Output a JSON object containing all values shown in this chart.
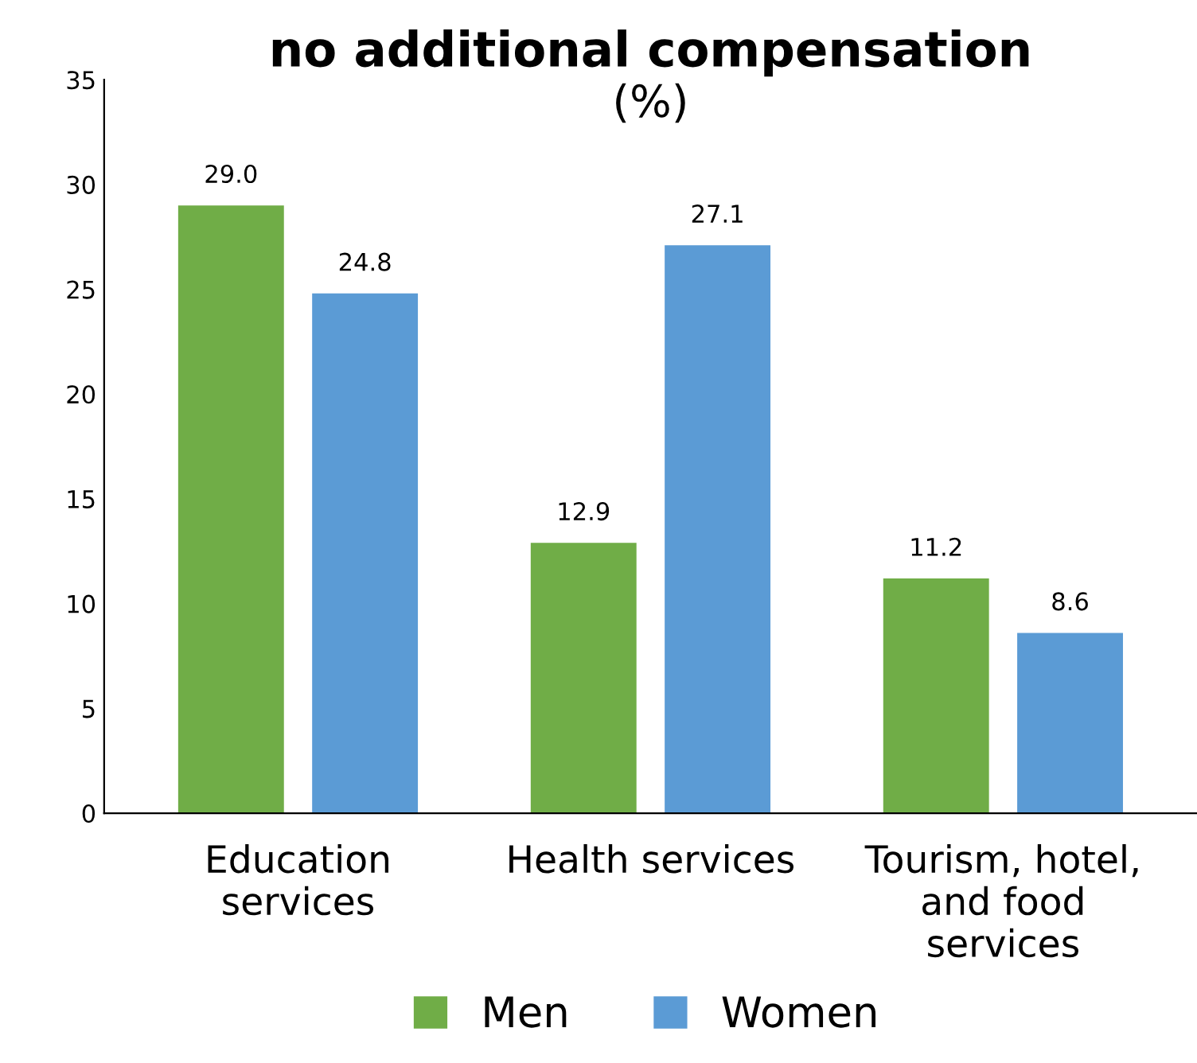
{
  "chart_data": {
    "type": "bar",
    "title": "no additional compensation",
    "subtitle": "(%)",
    "categories": [
      "Education\nservices",
      "Health services",
      "Tourism, hotel,\nand food\nservices"
    ],
    "series": [
      {
        "name": "Men",
        "color": "#70ad47",
        "values": [
          29.0,
          12.9,
          11.2
        ],
        "value_labels": [
          "29.0",
          "12.9",
          "11.2"
        ]
      },
      {
        "name": "Women",
        "color": "#5b9bd5",
        "values": [
          24.8,
          27.1,
          8.6
        ],
        "value_labels": [
          "24.8",
          "27.1",
          "8.6"
        ]
      }
    ],
    "ylim": [
      0,
      35
    ],
    "yticks": [
      0,
      5,
      10,
      15,
      20,
      25,
      30,
      35
    ],
    "grid": false,
    "legend": "bottom"
  }
}
